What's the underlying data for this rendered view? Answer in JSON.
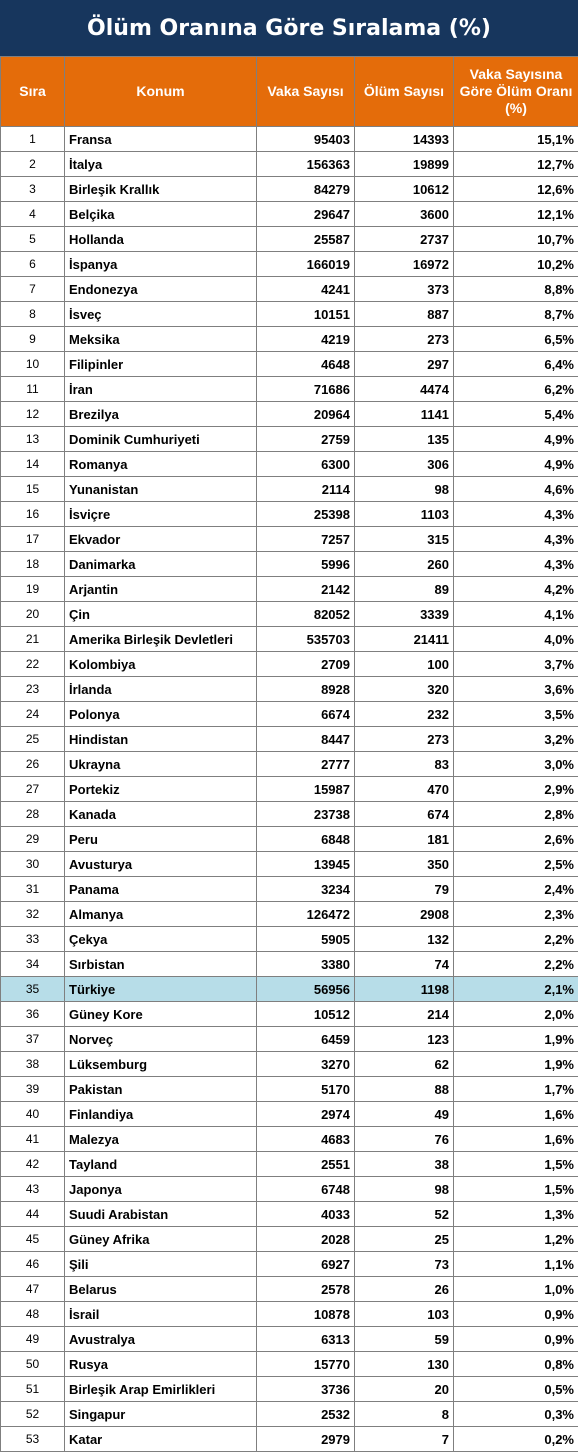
{
  "title": "Ölüm Oranına Göre Sıralama (%)",
  "headers": [
    "Sıra",
    "Konum",
    "Vaka Sayısı",
    "Ölüm Sayısı",
    "Vaka Sayısına Göre Ölüm Oranı (%)"
  ],
  "highlight_color": "#b7dde8",
  "header_color": "#e46c0a",
  "title_color": "#17365d",
  "rows": [
    [
      "1",
      "Fransa",
      "95403",
      "14393",
      "15,1%"
    ],
    [
      "2",
      "İtalya",
      "156363",
      "19899",
      "12,7%"
    ],
    [
      "3",
      "Birleşik Krallık",
      "84279",
      "10612",
      "12,6%"
    ],
    [
      "4",
      "Belçika",
      "29647",
      "3600",
      "12,1%"
    ],
    [
      "5",
      "Hollanda",
      "25587",
      "2737",
      "10,7%"
    ],
    [
      "6",
      "İspanya",
      "166019",
      "16972",
      "10,2%"
    ],
    [
      "7",
      "Endonezya",
      "4241",
      "373",
      "8,8%"
    ],
    [
      "8",
      "İsveç",
      "10151",
      "887",
      "8,7%"
    ],
    [
      "9",
      "Meksika",
      "4219",
      "273",
      "6,5%"
    ],
    [
      "10",
      "Filipinler",
      "4648",
      "297",
      "6,4%"
    ],
    [
      "11",
      "İran",
      "71686",
      "4474",
      "6,2%"
    ],
    [
      "12",
      "Brezilya",
      "20964",
      "1141",
      "5,4%"
    ],
    [
      "13",
      "Dominik Cumhuriyeti",
      "2759",
      "135",
      "4,9%"
    ],
    [
      "14",
      "Romanya",
      "6300",
      "306",
      "4,9%"
    ],
    [
      "15",
      "Yunanistan",
      "2114",
      "98",
      "4,6%"
    ],
    [
      "16",
      "İsviçre",
      "25398",
      "1103",
      "4,3%"
    ],
    [
      "17",
      "Ekvador",
      "7257",
      "315",
      "4,3%"
    ],
    [
      "18",
      "Danimarka",
      "5996",
      "260",
      "4,3%"
    ],
    [
      "19",
      "Arjantin",
      "2142",
      "89",
      "4,2%"
    ],
    [
      "20",
      "Çin",
      "82052",
      "3339",
      "4,1%"
    ],
    [
      "21",
      "Amerika Birleşik Devletleri",
      "535703",
      "21411",
      "4,0%"
    ],
    [
      "22",
      "Kolombiya",
      "2709",
      "100",
      "3,7%"
    ],
    [
      "23",
      "İrlanda",
      "8928",
      "320",
      "3,6%"
    ],
    [
      "24",
      "Polonya",
      "6674",
      "232",
      "3,5%"
    ],
    [
      "25",
      "Hindistan",
      "8447",
      "273",
      "3,2%"
    ],
    [
      "26",
      "Ukrayna",
      "2777",
      "83",
      "3,0%"
    ],
    [
      "27",
      "Portekiz",
      "15987",
      "470",
      "2,9%"
    ],
    [
      "28",
      "Kanada",
      "23738",
      "674",
      "2,8%"
    ],
    [
      "29",
      "Peru",
      "6848",
      "181",
      "2,6%"
    ],
    [
      "30",
      "Avusturya",
      "13945",
      "350",
      "2,5%"
    ],
    [
      "31",
      "Panama",
      "3234",
      "79",
      "2,4%"
    ],
    [
      "32",
      "Almanya",
      "126472",
      "2908",
      "2,3%"
    ],
    [
      "33",
      "Çekya",
      "5905",
      "132",
      "2,2%"
    ],
    [
      "34",
      "Sırbistan",
      "3380",
      "74",
      "2,2%"
    ],
    [
      "35",
      "Türkiye",
      "56956",
      "1198",
      "2,1%"
    ],
    [
      "36",
      "Güney Kore",
      "10512",
      "214",
      "2,0%"
    ],
    [
      "37",
      "Norveç",
      "6459",
      "123",
      "1,9%"
    ],
    [
      "38",
      "Lüksemburg",
      "3270",
      "62",
      "1,9%"
    ],
    [
      "39",
      "Pakistan",
      "5170",
      "88",
      "1,7%"
    ],
    [
      "40",
      "Finlandiya",
      "2974",
      "49",
      "1,6%"
    ],
    [
      "41",
      "Malezya",
      "4683",
      "76",
      "1,6%"
    ],
    [
      "42",
      "Tayland",
      "2551",
      "38",
      "1,5%"
    ],
    [
      "43",
      "Japonya",
      "6748",
      "98",
      "1,5%"
    ],
    [
      "44",
      "Suudi Arabistan",
      "4033",
      "52",
      "1,3%"
    ],
    [
      "45",
      "Güney Afrika",
      "2028",
      "25",
      "1,2%"
    ],
    [
      "46",
      "Şili",
      "6927",
      "73",
      "1,1%"
    ],
    [
      "47",
      "Belarus",
      "2578",
      "26",
      "1,0%"
    ],
    [
      "48",
      "İsrail",
      "10878",
      "103",
      "0,9%"
    ],
    [
      "49",
      "Avustralya",
      "6313",
      "59",
      "0,9%"
    ],
    [
      "50",
      "Rusya",
      "15770",
      "130",
      "0,8%"
    ],
    [
      "51",
      "Birleşik Arap Emirlikleri",
      "3736",
      "20",
      "0,5%"
    ],
    [
      "52",
      "Singapur",
      "2532",
      "8",
      "0,3%"
    ],
    [
      "53",
      "Katar",
      "2979",
      "7",
      "0,2%"
    ]
  ],
  "highlighted_row": "35"
}
